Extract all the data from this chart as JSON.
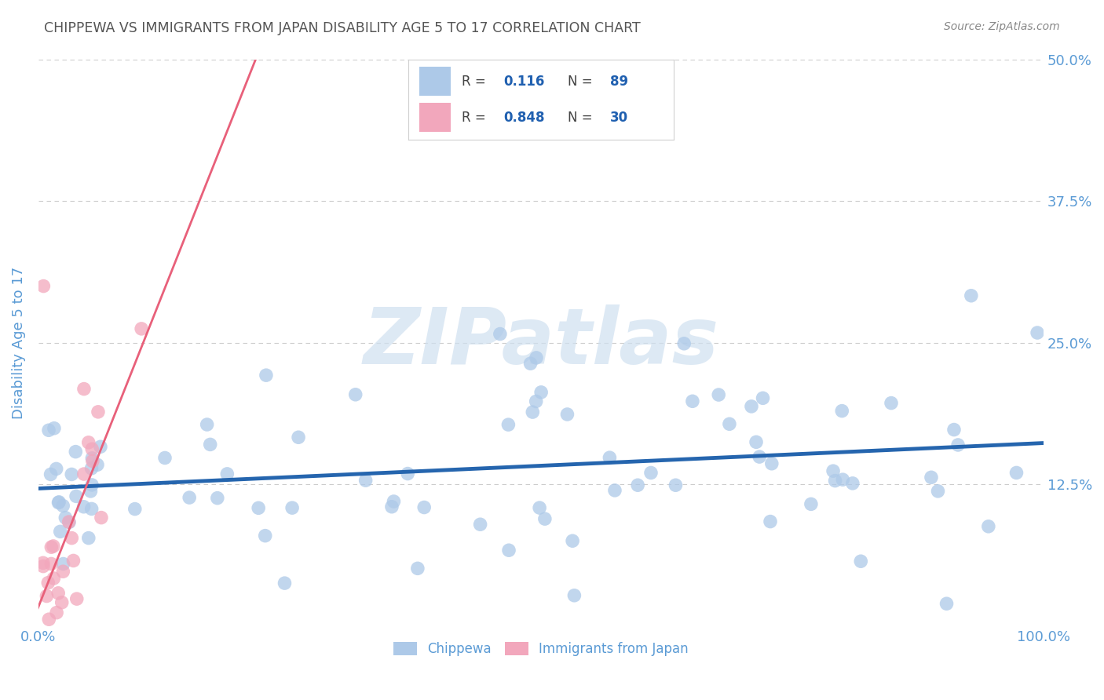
{
  "title": "CHIPPEWA VS IMMIGRANTS FROM JAPAN DISABILITY AGE 5 TO 17 CORRELATION CHART",
  "source": "Source: ZipAtlas.com",
  "ylabel": "Disability Age 5 to 17",
  "xlim": [
    0,
    1.0
  ],
  "ylim": [
    0,
    0.5
  ],
  "ytick_positions": [
    0.0,
    0.125,
    0.25,
    0.375,
    0.5
  ],
  "ytick_labels": [
    "",
    "12.5%",
    "25.0%",
    "37.5%",
    "50.0%"
  ],
  "xtick_positions": [
    0.0,
    0.25,
    0.5,
    0.75,
    1.0
  ],
  "xtick_labels_show": [
    "0.0%",
    "",
    "",
    "",
    "100.0%"
  ],
  "legend_r_blue": "0.116",
  "legend_n_blue": "89",
  "legend_r_pink": "0.848",
  "legend_n_pink": "30",
  "chippewa_color": "#adc9e8",
  "japan_color": "#f2a7bc",
  "blue_line_color": "#2565ae",
  "pink_line_color": "#e8607a",
  "watermark_text": "ZIPatlas",
  "watermark_color": "#cfe0f0",
  "background_color": "#ffffff",
  "title_color": "#555555",
  "axis_label_color": "#5b9bd5",
  "tick_color": "#5b9bd5",
  "grid_color": "#cccccc",
  "legend_text_color": "#444444",
  "legend_value_color": "#2060b0",
  "source_color": "#888888"
}
